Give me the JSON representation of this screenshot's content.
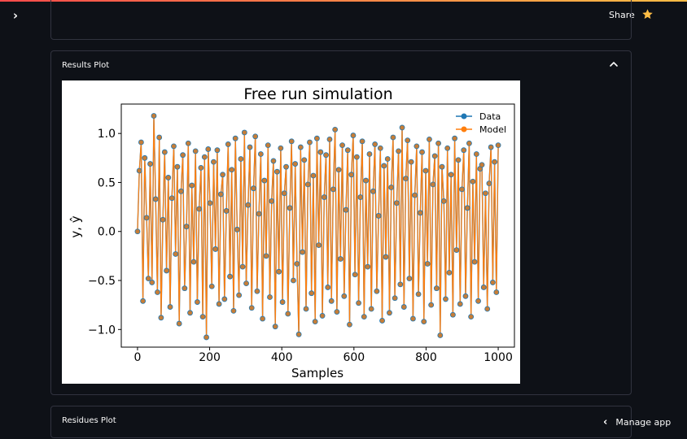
{
  "header": {
    "share_label": "Share",
    "sidebar_toggle_icon": "chevron-right-icon",
    "star_icon": "star-icon",
    "accent_color": "#ff4b4b",
    "star_color": "#ffbd45"
  },
  "expanders": {
    "results": {
      "label": "Results Plot",
      "expanded": true,
      "chevron_icon": "chevron-up-icon"
    },
    "residues": {
      "label": "Residues Plot",
      "expanded": false
    }
  },
  "footer": {
    "manage_app_label": "Manage app",
    "chevron_icon": "chevron-left-icon"
  },
  "chart_data": {
    "type": "line",
    "title": "Free run simulation",
    "xlabel": "Samples",
    "ylabel": "y, ŷ",
    "xlim": [
      -45,
      1045
    ],
    "ylim": [
      -1.18,
      1.3
    ],
    "x_ticks": [
      0,
      200,
      400,
      600,
      800,
      1000
    ],
    "x_tick_labels": [
      "0",
      "200",
      "400",
      "600",
      "800",
      "1000"
    ],
    "y_ticks": [
      -1.0,
      -0.5,
      0.0,
      0.5,
      1.0
    ],
    "y_tick_labels": [
      "−1.0",
      "−0.5",
      "0.0",
      "0.5",
      "1.0"
    ],
    "grid": false,
    "legend_position": "top-right",
    "series": [
      {
        "name": "Data",
        "color": "#1f77b4",
        "marker": "circle"
      },
      {
        "name": "Model",
        "color": "#ff7f0e",
        "marker": "circle"
      }
    ],
    "x_range": [
      0,
      1000
    ],
    "n_points": 200,
    "values": [
      0.0,
      0.62,
      0.91,
      -0.71,
      0.75,
      0.14,
      -0.48,
      0.69,
      -0.52,
      1.18,
      0.33,
      -0.62,
      0.96,
      -0.88,
      0.12,
      0.81,
      -0.4,
      0.55,
      -0.77,
      0.34,
      0.87,
      -0.23,
      0.66,
      -0.94,
      0.41,
      0.78,
      -0.58,
      0.05,
      0.9,
      -0.83,
      0.47,
      -0.31,
      0.82,
      -0.72,
      0.23,
      0.65,
      -0.87,
      0.76,
      -1.08,
      0.84,
      0.29,
      -0.56,
      0.71,
      -0.18,
      0.83,
      -0.74,
      0.38,
      0.58,
      -0.69,
      0.21,
      0.89,
      -0.46,
      0.63,
      -0.81,
      0.95,
      0.02,
      -0.65,
      0.74,
      -0.36,
      1.01,
      -0.53,
      0.27,
      0.86,
      -0.78,
      0.44,
      0.97,
      -0.61,
      0.18,
      0.79,
      -0.89,
      0.52,
      -0.25,
      0.88,
      -0.67,
      0.31,
      0.72,
      -0.97,
      0.61,
      -0.41,
      0.85,
      -0.72,
      0.39,
      0.66,
      -0.84,
      0.24,
      0.92,
      -0.5,
      0.69,
      -0.33,
      -1.05,
      0.86,
      -0.21,
      0.73,
      -0.79,
      0.48,
      0.91,
      -0.63,
      0.57,
      -0.92,
      0.95,
      -0.14,
      0.81,
      -0.86,
      0.35,
      0.78,
      -0.57,
      0.94,
      -0.71,
      0.43,
      1.04,
      -0.82,
      0.63,
      -0.28,
      0.88,
      -0.66,
      0.22,
      0.83,
      -0.95,
      0.58,
      0.98,
      -0.44,
      0.76,
      -0.73,
      0.35,
      0.92,
      -0.87,
      0.52,
      -0.36,
      0.79,
      -0.79,
      0.41,
      0.89,
      -0.61,
      0.16,
      0.85,
      -0.91,
      0.67,
      -0.26,
      0.74,
      -0.83,
      0.45,
      0.96,
      -0.68,
      0.29,
      0.82,
      -0.54,
      1.06,
      -0.77,
      0.54,
      0.93,
      -0.48,
      0.71,
      -0.89,
      0.37,
      0.87,
      -0.64,
      0.19,
      0.81,
      -0.92,
      0.62,
      -0.33,
      0.94,
      -0.75,
      0.48,
      0.77,
      -0.58,
      0.9,
      -1.06,
      0.66,
      0.31,
      -0.69,
      0.85,
      -0.42,
      0.58,
      -0.85,
      0.95,
      -0.19,
      0.73,
      -0.74,
      0.43,
      0.83,
      -0.66,
      0.24,
      0.9,
      -0.87,
      0.51,
      -0.31,
      0.79,
      -0.71,
      0.64,
      0.68,
      -0.57,
      0.39,
      -0.79,
      0.49,
      0.86,
      -0.52,
      0.71,
      -0.62,
      0.88
    ]
  }
}
